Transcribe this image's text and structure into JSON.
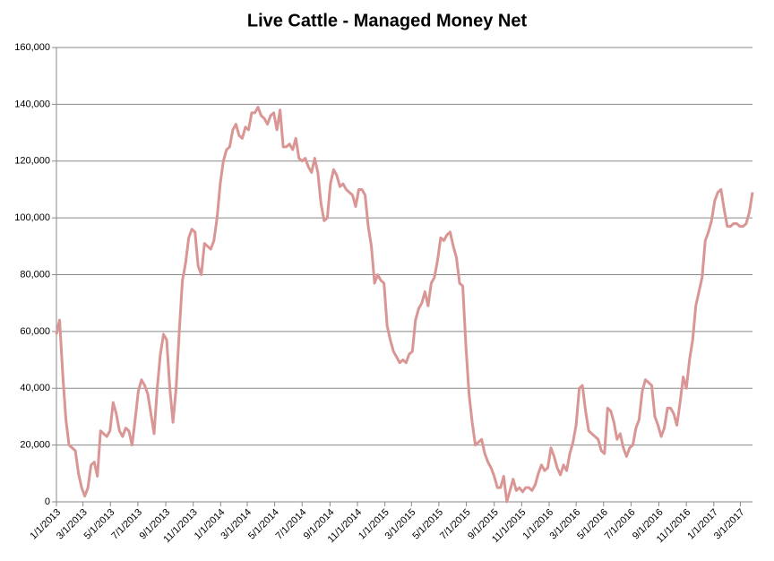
{
  "chart_data": {
    "type": "line",
    "title": "Live Cattle - Managed Money Net",
    "x": [
      "1/1/2013",
      "1/8/2013",
      "1/15/2013",
      "1/22/2013",
      "1/29/2013",
      "2/5/2013",
      "2/12/2013",
      "2/19/2013",
      "2/26/2013",
      "3/5/2013",
      "3/12/2013",
      "3/19/2013",
      "3/26/2013",
      "4/2/2013",
      "4/9/2013",
      "4/16/2013",
      "4/23/2013",
      "4/30/2013",
      "5/7/2013",
      "5/14/2013",
      "5/21/2013",
      "5/28/2013",
      "6/4/2013",
      "6/11/2013",
      "6/18/2013",
      "6/25/2013",
      "7/2/2013",
      "7/9/2013",
      "7/16/2013",
      "7/23/2013",
      "7/30/2013",
      "8/6/2013",
      "8/13/2013",
      "8/20/2013",
      "8/27/2013",
      "9/3/2013",
      "9/10/2013",
      "9/17/2013",
      "9/24/2013",
      "10/1/2013",
      "10/8/2013",
      "10/15/2013",
      "10/22/2013",
      "10/29/2013",
      "11/5/2013",
      "11/12/2013",
      "11/19/2013",
      "11/26/2013",
      "12/3/2013",
      "12/10/2013",
      "12/17/2013",
      "12/24/2013",
      "12/31/2013",
      "1/7/2014",
      "1/14/2014",
      "1/21/2014",
      "1/28/2014",
      "2/4/2014",
      "2/11/2014",
      "2/18/2014",
      "2/25/2014",
      "3/4/2014",
      "3/11/2014",
      "3/18/2014",
      "3/25/2014",
      "4/1/2014",
      "4/8/2014",
      "4/15/2014",
      "4/22/2014",
      "4/29/2014",
      "5/6/2014",
      "5/13/2014",
      "5/20/2014",
      "5/27/2014",
      "6/3/2014",
      "6/10/2014",
      "6/17/2014",
      "6/24/2014",
      "7/1/2014",
      "7/8/2014",
      "7/15/2014",
      "7/22/2014",
      "7/29/2014",
      "8/5/2014",
      "8/12/2014",
      "8/19/2014",
      "8/26/2014",
      "9/2/2014",
      "9/9/2014",
      "9/16/2014",
      "9/23/2014",
      "9/30/2014",
      "10/7/2014",
      "10/14/2014",
      "10/21/2014",
      "10/28/2014",
      "11/4/2014",
      "11/11/2014",
      "11/18/2014",
      "11/25/2014",
      "12/2/2014",
      "12/9/2014",
      "12/16/2014",
      "12/23/2014",
      "12/30/2014",
      "1/6/2015",
      "1/13/2015",
      "1/20/2015",
      "1/27/2015",
      "2/3/2015",
      "2/10/2015",
      "2/17/2015",
      "2/24/2015",
      "3/3/2015",
      "3/10/2015",
      "3/17/2015",
      "3/24/2015",
      "3/31/2015",
      "4/7/2015",
      "4/14/2015",
      "4/21/2015",
      "4/28/2015",
      "5/5/2015",
      "5/12/2015",
      "5/19/2015",
      "5/26/2015",
      "6/2/2015",
      "6/9/2015",
      "6/16/2015",
      "6/23/2015",
      "6/30/2015",
      "7/7/2015",
      "7/14/2015",
      "7/21/2015",
      "7/28/2015",
      "8/4/2015",
      "8/11/2015",
      "8/18/2015",
      "8/25/2015",
      "9/1/2015",
      "9/8/2015",
      "9/15/2015",
      "9/22/2015",
      "9/29/2015",
      "10/6/2015",
      "10/13/2015",
      "10/20/2015",
      "10/27/2015",
      "11/3/2015",
      "11/10/2015",
      "11/17/2015",
      "11/24/2015",
      "12/1/2015",
      "12/8/2015",
      "12/15/2015",
      "12/22/2015",
      "12/29/2015",
      "1/5/2016",
      "1/12/2016",
      "1/19/2016",
      "1/26/2016",
      "2/2/2016",
      "2/9/2016",
      "2/16/2016",
      "2/23/2016",
      "3/1/2016",
      "3/8/2016",
      "3/15/2016",
      "3/22/2016",
      "3/29/2016",
      "4/5/2016",
      "4/12/2016",
      "4/19/2016",
      "4/26/2016",
      "5/3/2016",
      "5/10/2016",
      "5/17/2016",
      "5/24/2016",
      "5/31/2016",
      "6/7/2016",
      "6/14/2016",
      "6/21/2016",
      "6/28/2016",
      "7/5/2016",
      "7/12/2016",
      "7/19/2016",
      "7/26/2016",
      "8/2/2016",
      "8/9/2016",
      "8/16/2016",
      "8/23/2016",
      "8/30/2016",
      "9/6/2016",
      "9/13/2016",
      "9/20/2016",
      "9/27/2016",
      "10/4/2016",
      "10/11/2016",
      "10/18/2016",
      "10/25/2016",
      "11/1/2016",
      "11/8/2016",
      "11/15/2016",
      "11/22/2016",
      "11/29/2016",
      "12/6/2016",
      "12/13/2016",
      "12/20/2016",
      "12/27/2016",
      "1/3/2017",
      "1/10/2017",
      "1/17/2017",
      "1/24/2017",
      "1/31/2017",
      "2/7/2017",
      "2/14/2017",
      "2/21/2017",
      "2/28/2017",
      "3/7/2017",
      "3/14/2017",
      "3/21/2017",
      "3/28/2017"
    ],
    "series": [
      {
        "color": "#d99694",
        "values": [
          59000,
          64000,
          45000,
          29000,
          20000,
          19000,
          18000,
          10000,
          5000,
          2000,
          5000,
          13000,
          14000,
          9000,
          25000,
          24000,
          23000,
          25000,
          35000,
          31000,
          25000,
          23000,
          26000,
          25000,
          20000,
          29000,
          39000,
          43000,
          41000,
          38000,
          31000,
          24000,
          40000,
          52000,
          59000,
          57000,
          40000,
          28000,
          40000,
          60000,
          78000,
          84000,
          93000,
          96000,
          95000,
          83000,
          80000,
          91000,
          90000,
          89000,
          92000,
          100000,
          112000,
          120000,
          124000,
          125000,
          131000,
          133000,
          129000,
          128000,
          132000,
          131000,
          137000,
          137000,
          139000,
          136000,
          135000,
          133000,
          136000,
          137000,
          131000,
          138000,
          125000,
          125000,
          126000,
          124000,
          128000,
          121000,
          120000,
          121000,
          118000,
          116000,
          121000,
          116000,
          105000,
          99000,
          100000,
          112000,
          117000,
          115000,
          111000,
          112000,
          110000,
          109000,
          108000,
          104000,
          110000,
          110000,
          108000,
          97000,
          90000,
          77000,
          80000,
          78000,
          77000,
          62000,
          57000,
          53000,
          51000,
          49000,
          50000,
          49000,
          52000,
          53000,
          64000,
          68000,
          70000,
          74000,
          69000,
          77000,
          79000,
          85000,
          93000,
          92000,
          94000,
          95000,
          90000,
          86000,
          77000,
          76000,
          55000,
          38000,
          28000,
          20000,
          21000,
          22000,
          17000,
          14000,
          12000,
          9000,
          5000,
          5000,
          9000,
          0,
          4000,
          8000,
          4000,
          5000,
          3500,
          5000,
          5000,
          4000,
          6000,
          10000,
          13000,
          11000,
          12000,
          19000,
          16000,
          12000,
          9500,
          13000,
          11000,
          17000,
          21000,
          27000,
          40000,
          41000,
          32000,
          25000,
          24000,
          23000,
          22000,
          18000,
          17000,
          33000,
          32000,
          28000,
          22000,
          24000,
          19000,
          16000,
          19000,
          20000,
          26000,
          29000,
          39000,
          43000,
          42000,
          41000,
          30000,
          27000,
          23000,
          26000,
          33000,
          33000,
          31000,
          27000,
          35000,
          44000,
          40000,
          50000,
          57000,
          69000,
          74000,
          79000,
          92000,
          95000,
          99000,
          106000,
          109000,
          110000,
          103000,
          97000,
          97000,
          98000,
          98000,
          97000,
          97000,
          98000,
          102000,
          109000
        ]
      }
    ],
    "xlim": [
      "1/1/2013",
      "3/28/2017"
    ],
    "xticks": [
      "1/1/2013",
      "3/1/2013",
      "5/1/2013",
      "7/1/2013",
      "9/1/2013",
      "11/1/2013",
      "1/1/2014",
      "3/1/2014",
      "5/1/2014",
      "7/1/2014",
      "9/1/2014",
      "11/1/2014",
      "1/1/2015",
      "3/1/2015",
      "5/1/2015",
      "7/1/2015",
      "9/1/2015",
      "11/1/2015",
      "1/1/2016",
      "3/1/2016",
      "5/1/2016",
      "7/1/2016",
      "9/1/2016",
      "11/1/2016",
      "1/1/2017",
      "3/1/2017"
    ],
    "ylim": [
      0,
      160000
    ],
    "yticks": [
      0,
      {
        "value": 20000,
        "label": "20,000"
      },
      {
        "value": 40000,
        "label": "40,000"
      },
      {
        "value": 60000,
        "label": "60,000"
      },
      {
        "value": 80000,
        "label": "80,000"
      },
      {
        "value": 100000,
        "label": "100,000"
      },
      {
        "value": 120000,
        "label": "120,000"
      },
      {
        "value": 140000,
        "label": "140,000"
      },
      {
        "value": 160000,
        "label": "160,000"
      }
    ],
    "grid": true
  }
}
